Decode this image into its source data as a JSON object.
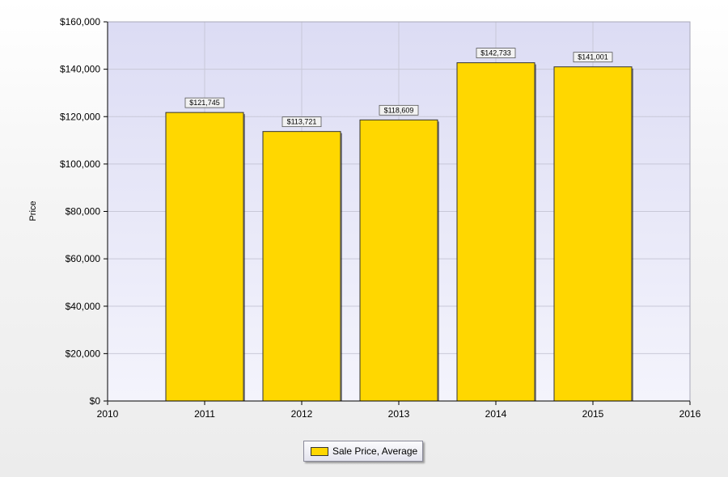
{
  "chart_data": {
    "type": "bar",
    "categories": [
      "2011",
      "2012",
      "2013",
      "2014",
      "2015"
    ],
    "x": [
      2011,
      2012,
      2013,
      2014,
      2015
    ],
    "values": [
      121745,
      113721,
      118609,
      142733,
      141001
    ],
    "value_labels": [
      "$121,745",
      "$113,721",
      "$118,609",
      "$142,733",
      "$141,001"
    ],
    "series": [
      {
        "name": "Sale Price, Average",
        "values": [
          121745,
          113721,
          118609,
          142733,
          141001
        ]
      }
    ],
    "title": "",
    "xlabel": "",
    "ylabel": "Price",
    "xlim": [
      2010,
      2016
    ],
    "xticks": [
      "2010",
      "2011",
      "2012",
      "2013",
      "2014",
      "2015",
      "2016"
    ],
    "ylim": [
      0,
      160000
    ],
    "yticks": [
      "$0",
      "$20,000",
      "$40,000",
      "$60,000",
      "$80,000",
      "$100,000",
      "$120,000",
      "$140,000",
      "$160,000"
    ],
    "grid": true,
    "legend_position": "bottom-center",
    "colors": {
      "bar_fill": "#FFD700",
      "bar_stroke": "#333333",
      "plot_bg_top": "#DCDCF4",
      "plot_bg_bottom": "#F4F4FC",
      "grid": "#C8C8D8"
    }
  },
  "legend": {
    "label": "Sale Price, Average"
  }
}
